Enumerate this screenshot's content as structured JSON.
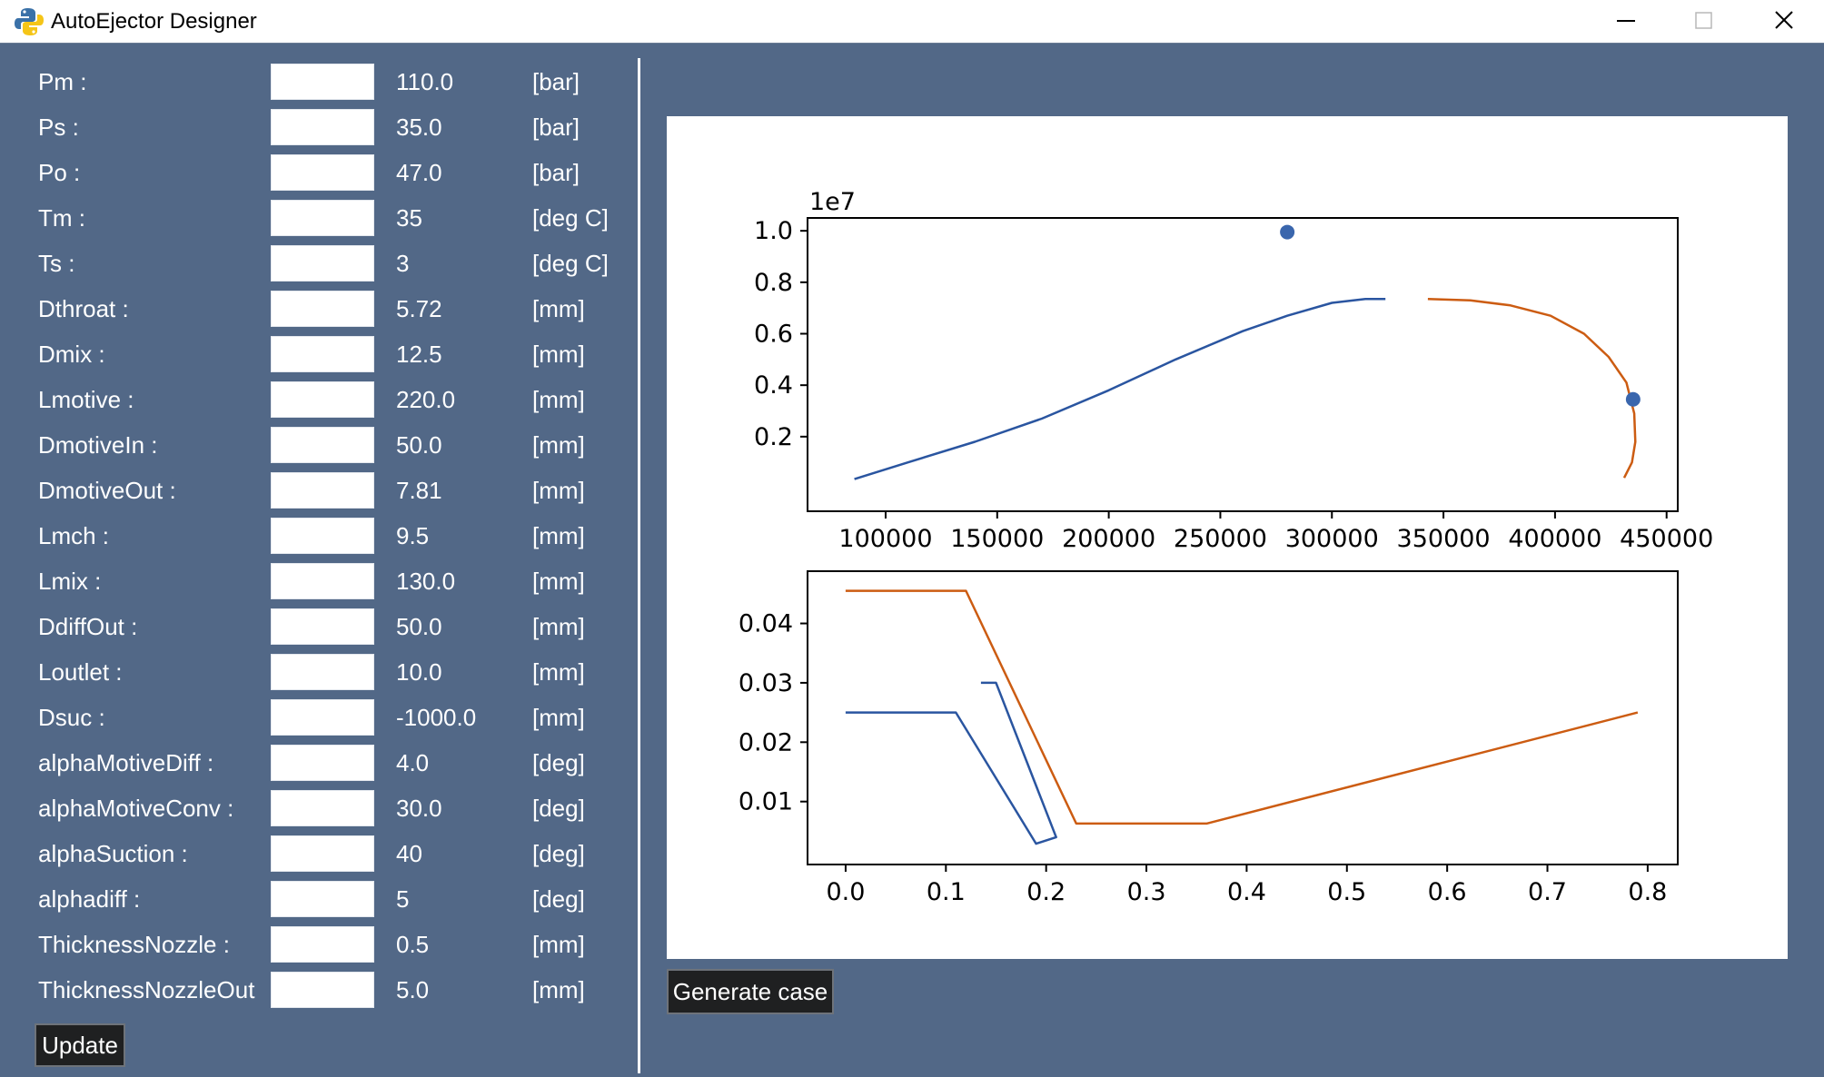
{
  "window": {
    "title": "AutoEjector Designer"
  },
  "form": {
    "fields": [
      {
        "label": "Pm :",
        "value": "110.0",
        "unit": "[bar]"
      },
      {
        "label": "Ps :",
        "value": "35.0",
        "unit": "[bar]"
      },
      {
        "label": "Po :",
        "value": "47.0",
        "unit": "[bar]"
      },
      {
        "label": "Tm :",
        "value": "35",
        "unit": "[deg C]"
      },
      {
        "label": "Ts :",
        "value": "3",
        "unit": "[deg C]"
      },
      {
        "label": "Dthroat :",
        "value": "5.72",
        "unit": "[mm]"
      },
      {
        "label": "Dmix :",
        "value": "12.5",
        "unit": "[mm]"
      },
      {
        "label": "Lmotive :",
        "value": "220.0",
        "unit": "[mm]"
      },
      {
        "label": "DmotiveIn :",
        "value": "50.0",
        "unit": "[mm]"
      },
      {
        "label": "DmotiveOut :",
        "value": "7.81",
        "unit": "[mm]"
      },
      {
        "label": "Lmch :",
        "value": "9.5",
        "unit": "[mm]"
      },
      {
        "label": "Lmix :",
        "value": "130.0",
        "unit": "[mm]"
      },
      {
        "label": "DdiffOut :",
        "value": "50.0",
        "unit": "[mm]"
      },
      {
        "label": "Loutlet :",
        "value": "10.0",
        "unit": "[mm]"
      },
      {
        "label": "Dsuc :",
        "value": "-1000.0",
        "unit": "[mm]"
      },
      {
        "label": "alphaMotiveDiff :",
        "value": "4.0",
        "unit": "[deg]"
      },
      {
        "label": "alphaMotiveConv :",
        "value": "30.0",
        "unit": "[deg]"
      },
      {
        "label": "alphaSuction :",
        "value": "40",
        "unit": "[deg]"
      },
      {
        "label": "alphadiff :",
        "value": "5",
        "unit": "[deg]"
      },
      {
        "label": "ThicknessNozzle :",
        "value": "0.5",
        "unit": "[mm]"
      },
      {
        "label": "ThicknessNozzleOut",
        "value": "5.0",
        "unit": "[mm]"
      }
    ],
    "update_label": "Update"
  },
  "generate_label": "Generate case",
  "colors": {
    "blue": "#2a55a0",
    "orange": "#cc5c12",
    "marker": "#3a66ad"
  },
  "chart_data": [
    {
      "type": "line",
      "offset_text": "1e7",
      "xlim": [
        65000,
        455000
      ],
      "ylim": [
        -0.09,
        1.05
      ],
      "xticks": [
        100000,
        150000,
        200000,
        250000,
        300000,
        350000,
        400000,
        450000
      ],
      "xtick_labels": [
        "100000",
        "150000",
        "200000",
        "250000",
        "300000",
        "350000",
        "400000",
        "450000"
      ],
      "yticks": [
        0.2,
        0.4,
        0.6,
        0.8,
        1.0
      ],
      "ytick_labels": [
        "0.2",
        "0.4",
        "0.6",
        "0.8",
        "1.0"
      ],
      "series": [
        {
          "color": "blue",
          "x": [
            86000,
            110000,
            140000,
            170000,
            200000,
            230000,
            260000,
            280000,
            300000,
            315000,
            324000
          ],
          "y": [
            0.035,
            0.1,
            0.18,
            0.27,
            0.38,
            0.5,
            0.61,
            0.67,
            0.72,
            0.735,
            0.735
          ]
        },
        {
          "color": "orange",
          "x": [
            343000,
            362000,
            380000,
            398000,
            413000,
            424000,
            432000,
            435500,
            436000,
            434500,
            431000
          ],
          "y": [
            0.735,
            0.73,
            0.71,
            0.67,
            0.6,
            0.51,
            0.41,
            0.29,
            0.18,
            0.1,
            0.04
          ]
        }
      ],
      "points": [
        {
          "x": 280000,
          "y": 0.995
        },
        {
          "x": 435000,
          "y": 0.345
        }
      ]
    },
    {
      "type": "line",
      "xlim": [
        -0.038,
        0.83
      ],
      "ylim": [
        -0.0006,
        0.0488
      ],
      "xticks": [
        0.0,
        0.1,
        0.2,
        0.3,
        0.4,
        0.5,
        0.6,
        0.7,
        0.8
      ],
      "xtick_labels": [
        "0.0",
        "0.1",
        "0.2",
        "0.3",
        "0.4",
        "0.5",
        "0.6",
        "0.7",
        "0.8"
      ],
      "yticks": [
        0.01,
        0.02,
        0.03,
        0.04
      ],
      "ytick_labels": [
        "0.01",
        "0.02",
        "0.03",
        "0.04"
      ],
      "series": [
        {
          "color": "blue",
          "x": [
            0.0,
            0.11,
            0.19,
            0.21,
            0.15,
            0.135
          ],
          "y": [
            0.025,
            0.025,
            0.0029,
            0.004,
            0.03,
            0.03
          ]
        },
        {
          "color": "orange",
          "x": [
            0.0,
            0.12,
            0.23,
            0.36,
            0.79
          ],
          "y": [
            0.0455,
            0.0455,
            0.0063,
            0.0063,
            0.025
          ]
        }
      ]
    }
  ]
}
